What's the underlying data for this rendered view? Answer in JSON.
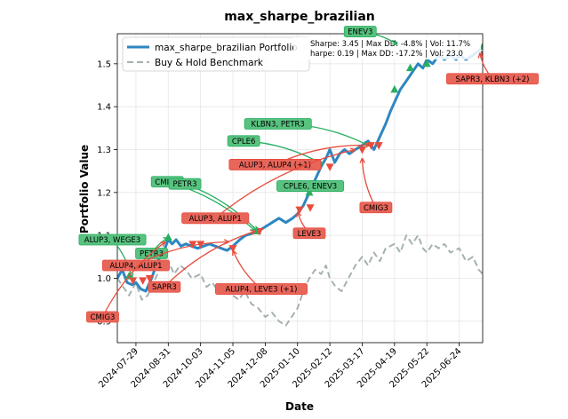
{
  "chart_data": {
    "type": "line",
    "title": "max_sharpe_brazilian",
    "xlabel": "Date",
    "ylabel": "Portfolio Value",
    "xlim": [
      "2024-07-10",
      "2025-07-18"
    ],
    "ylim": [
      0.85,
      1.57
    ],
    "x_ticks": [
      "2024-07-29",
      "2024-08-31",
      "2024-10-03",
      "2024-11-05",
      "2024-12-08",
      "2025-01-10",
      "2025-02-12",
      "2025-03-17",
      "2025-04-19",
      "2025-05-22",
      "2025-06-24"
    ],
    "y_ticks": [
      0.9,
      1.0,
      1.1,
      1.2,
      1.3,
      1.4,
      1.5
    ],
    "grid": true,
    "legend": {
      "placement": "top-left",
      "entries": [
        "max_sharpe_brazilian Portfolio",
        "Buy & Hold Benchmark"
      ]
    },
    "stats": [
      "Sharpe: 3.45 | Max DD: -4.8% | Vol: 11.7%",
      "harpe: 0.19 | Max DD: -17.2% | Vol: 23.0"
    ],
    "series": [
      {
        "name": "max_sharpe_brazilian Portfolio",
        "color": "#2e86c1",
        "style": "solid",
        "points": [
          [
            "2024-07-10",
            1.0
          ],
          [
            "2024-07-15",
            1.02
          ],
          [
            "2024-07-20",
            0.99
          ],
          [
            "2024-07-25",
            0.985
          ],
          [
            "2024-07-29",
            0.99
          ],
          [
            "2024-08-03",
            0.975
          ],
          [
            "2024-08-08",
            0.97
          ],
          [
            "2024-08-14",
            1.0
          ],
          [
            "2024-08-20",
            1.04
          ],
          [
            "2024-08-26",
            1.06
          ],
          [
            "2024-08-31",
            1.09
          ],
          [
            "2024-09-04",
            1.08
          ],
          [
            "2024-09-08",
            1.09
          ],
          [
            "2024-09-13",
            1.075
          ],
          [
            "2024-09-18",
            1.08
          ],
          [
            "2024-09-24",
            1.075
          ],
          [
            "2024-09-30",
            1.07
          ],
          [
            "2024-10-06",
            1.075
          ],
          [
            "2024-10-12",
            1.08
          ],
          [
            "2024-10-18",
            1.075
          ],
          [
            "2024-10-24",
            1.07
          ],
          [
            "2024-10-30",
            1.065
          ],
          [
            "2024-11-05",
            1.075
          ],
          [
            "2024-11-12",
            1.09
          ],
          [
            "2024-11-18",
            1.1
          ],
          [
            "2024-11-25",
            1.105
          ],
          [
            "2024-12-01",
            1.11
          ],
          [
            "2024-12-08",
            1.12
          ],
          [
            "2024-12-15",
            1.13
          ],
          [
            "2024-12-22",
            1.14
          ],
          [
            "2024-12-29",
            1.13
          ],
          [
            "2025-01-05",
            1.14
          ],
          [
            "2025-01-10",
            1.15
          ],
          [
            "2025-01-16",
            1.17
          ],
          [
            "2025-01-22",
            1.2
          ],
          [
            "2025-01-28",
            1.23
          ],
          [
            "2025-02-03",
            1.26
          ],
          [
            "2025-02-08",
            1.28
          ],
          [
            "2025-02-12",
            1.3
          ],
          [
            "2025-02-17",
            1.27
          ],
          [
            "2025-02-22",
            1.29
          ],
          [
            "2025-02-27",
            1.3
          ],
          [
            "2025-03-04",
            1.29
          ],
          [
            "2025-03-10",
            1.3
          ],
          [
            "2025-03-17",
            1.31
          ],
          [
            "2025-03-23",
            1.32
          ],
          [
            "2025-03-29",
            1.3
          ],
          [
            "2025-04-04",
            1.33
          ],
          [
            "2025-04-10",
            1.36
          ],
          [
            "2025-04-15",
            1.39
          ],
          [
            "2025-04-19",
            1.41
          ],
          [
            "2025-04-25",
            1.44
          ],
          [
            "2025-05-01",
            1.46
          ],
          [
            "2025-05-07",
            1.48
          ],
          [
            "2025-05-13",
            1.5
          ],
          [
            "2025-05-18",
            1.49
          ],
          [
            "2025-05-22",
            1.51
          ],
          [
            "2025-05-28",
            1.5
          ],
          [
            "2025-06-03",
            1.52
          ],
          [
            "2025-06-09",
            1.51
          ],
          [
            "2025-06-15",
            1.52
          ],
          [
            "2025-06-21",
            1.51
          ],
          [
            "2025-06-24",
            1.52
          ],
          [
            "2025-07-01",
            1.51
          ],
          [
            "2025-07-08",
            1.52
          ],
          [
            "2025-07-14",
            1.53
          ],
          [
            "2025-07-18",
            1.525
          ]
        ]
      },
      {
        "name": "Buy & Hold Benchmark",
        "color": "#a6b1b2",
        "style": "dashed",
        "points": [
          [
            "2024-07-10",
            1.0
          ],
          [
            "2024-07-16",
            0.98
          ],
          [
            "2024-07-22",
            0.96
          ],
          [
            "2024-07-29",
            0.99
          ],
          [
            "2024-08-04",
            0.95
          ],
          [
            "2024-08-10",
            0.96
          ],
          [
            "2024-08-16",
            0.99
          ],
          [
            "2024-08-22",
            1.02
          ],
          [
            "2024-08-31",
            1.04
          ],
          [
            "2024-09-06",
            1.01
          ],
          [
            "2024-09-12",
            1.03
          ],
          [
            "2024-09-18",
            1.02
          ],
          [
            "2024-09-24",
            1.0
          ],
          [
            "2024-10-03",
            1.01
          ],
          [
            "2024-10-09",
            0.98
          ],
          [
            "2024-10-15",
            0.99
          ],
          [
            "2024-10-21",
            0.97
          ],
          [
            "2024-10-28",
            0.98
          ],
          [
            "2024-11-05",
            0.96
          ],
          [
            "2024-11-11",
            0.95
          ],
          [
            "2024-11-17",
            0.97
          ],
          [
            "2024-11-24",
            0.94
          ],
          [
            "2024-12-01",
            0.93
          ],
          [
            "2024-12-08",
            0.91
          ],
          [
            "2024-12-15",
            0.92
          ],
          [
            "2024-12-22",
            0.9
          ],
          [
            "2024-12-29",
            0.89
          ],
          [
            "2025-01-04",
            0.91
          ],
          [
            "2025-01-10",
            0.93
          ],
          [
            "2025-01-16",
            0.97
          ],
          [
            "2025-01-22",
            1.0
          ],
          [
            "2025-01-28",
            1.02
          ],
          [
            "2025-02-03",
            1.01
          ],
          [
            "2025-02-08",
            1.03
          ],
          [
            "2025-02-12",
            1.0
          ],
          [
            "2025-02-18",
            0.98
          ],
          [
            "2025-02-24",
            0.97
          ],
          [
            "2025-03-03",
            1.0
          ],
          [
            "2025-03-10",
            1.03
          ],
          [
            "2025-03-17",
            1.05
          ],
          [
            "2025-03-23",
            1.03
          ],
          [
            "2025-03-29",
            1.06
          ],
          [
            "2025-04-04",
            1.04
          ],
          [
            "2025-04-10",
            1.07
          ],
          [
            "2025-04-19",
            1.08
          ],
          [
            "2025-04-25",
            1.06
          ],
          [
            "2025-05-01",
            1.1
          ],
          [
            "2025-05-07",
            1.08
          ],
          [
            "2025-05-13",
            1.1
          ],
          [
            "2025-05-18",
            1.07
          ],
          [
            "2025-05-22",
            1.06
          ],
          [
            "2025-05-28",
            1.08
          ],
          [
            "2025-06-03",
            1.07
          ],
          [
            "2025-06-09",
            1.08
          ],
          [
            "2025-06-15",
            1.06
          ],
          [
            "2025-06-24",
            1.07
          ],
          [
            "2025-07-01",
            1.04
          ],
          [
            "2025-07-08",
            1.05
          ],
          [
            "2025-07-14",
            1.02
          ],
          [
            "2025-07-18",
            1.01
          ]
        ]
      }
    ],
    "buy_markers": [
      [
        "2024-07-22",
        1.005
      ],
      [
        "2024-08-31",
        1.095
      ],
      [
        "2024-11-30",
        1.11
      ],
      [
        "2025-01-22",
        1.2
      ],
      [
        "2025-04-19",
        1.44
      ],
      [
        "2025-05-05",
        1.49
      ],
      [
        "2025-05-22",
        1.5
      ],
      [
        "2025-07-18",
        1.54
      ]
    ],
    "sell_markers": [
      [
        "2024-07-26",
        0.995
      ],
      [
        "2024-08-05",
        0.995
      ],
      [
        "2024-08-12",
        1.0
      ],
      [
        "2024-09-25",
        1.08
      ],
      [
        "2024-10-03",
        1.08
      ],
      [
        "2024-11-05",
        1.07
      ],
      [
        "2024-12-02",
        1.11
      ],
      [
        "2025-01-12",
        1.16
      ],
      [
        "2025-01-23",
        1.165
      ],
      [
        "2025-02-12",
        1.26
      ],
      [
        "2025-03-17",
        1.3
      ],
      [
        "2025-03-26",
        1.31
      ],
      [
        "2025-04-03",
        1.31
      ],
      [
        "2025-07-18",
        1.52
      ]
    ],
    "annotations": [
      {
        "text": "ENEV3",
        "kind": "buy",
        "lx": "2025-03-15",
        "ly": 1.575,
        "px": "2025-04-22",
        "py": 1.545
      },
      {
        "text": "SAPR3, KLBN3 (+2)",
        "kind": "sell",
        "lx": "2025-07-28",
        "ly": 1.465,
        "px": "2025-07-15",
        "py": 1.525
      },
      {
        "text": "KLBN3, PETR3",
        "kind": "buy",
        "lx": "2024-12-21",
        "ly": 1.36,
        "px": "2025-03-23",
        "py": 1.31
      },
      {
        "text": "CPLE6",
        "kind": "buy",
        "lx": "2024-11-16",
        "ly": 1.32,
        "px": "2025-02-05",
        "py": 1.265
      },
      {
        "text": "ALUP3, ALUP4 (+1)",
        "kind": "sell",
        "lx": "2024-12-18",
        "ly": 1.265,
        "px": "2025-03-25",
        "py": 1.31
      },
      {
        "text": "CPLE6, ENEV3",
        "kind": "buy",
        "lx": "2025-01-23",
        "ly": 1.215,
        "px": "2025-01-23",
        "py": 1.2
      },
      {
        "text": "CMIG3",
        "kind": "buy",
        "lx": "2024-08-30",
        "ly": 1.225,
        "px": "2024-11-28",
        "py": 1.11
      },
      {
        "text": "PETR3",
        "kind": "buy",
        "lx": "2024-09-17",
        "ly": 1.22,
        "px": "2024-11-30",
        "py": 1.11
      },
      {
        "text": "CMIG3",
        "kind": "sell",
        "lx": "2025-03-31",
        "ly": 1.165,
        "px": "2025-03-17",
        "py": 1.28
      },
      {
        "text": "ALUP3, ALUP1",
        "kind": "sell",
        "lx": "2024-10-18",
        "ly": 1.14,
        "px": "2025-03-10",
        "py": 1.3
      },
      {
        "text": "LEVE3",
        "kind": "sell",
        "lx": "2025-01-22",
        "ly": 1.105,
        "px": "2025-01-10",
        "py": 1.155
      },
      {
        "text": "ALUP3, WEGE3",
        "kind": "buy",
        "lx": "2024-07-05",
        "ly": 1.09,
        "px": "2024-07-25",
        "py": 1.0
      },
      {
        "text": "PETR3",
        "kind": "buy",
        "lx": "2024-08-14",
        "ly": 1.058,
        "px": "2024-08-31",
        "py": 1.095
      },
      {
        "text": "ALUP4, ALUP1",
        "kind": "sell",
        "lx": "2024-07-29",
        "ly": 1.03,
        "px": "2024-11-01",
        "py": 1.085
      },
      {
        "text": "SAPR3",
        "kind": "sell",
        "lx": "2024-08-27",
        "ly": 0.98,
        "px": "2024-11-28",
        "py": 1.11
      },
      {
        "text": "ALUP4, LEVE3 (+1)",
        "kind": "sell",
        "lx": "2024-12-04",
        "ly": 0.975,
        "px": "2024-11-05",
        "py": 1.065
      },
      {
        "text": "CMIG3",
        "kind": "sell",
        "lx": "2024-06-25",
        "ly": 0.91,
        "px": "2024-08-28",
        "py": 1.085
      }
    ]
  }
}
